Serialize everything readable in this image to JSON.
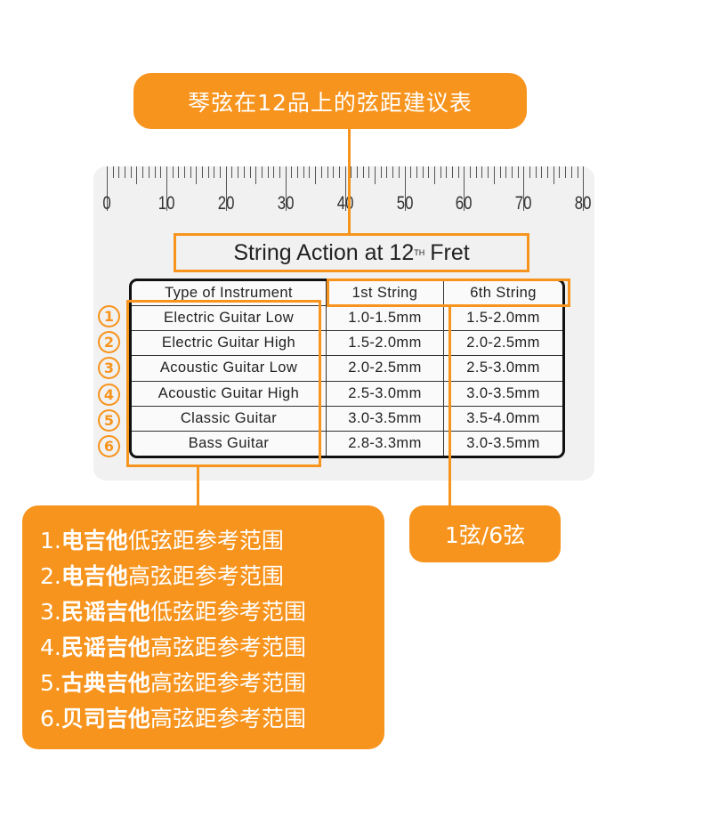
{
  "colors": {
    "accent": "#f7941d",
    "card": "#f1f1f1",
    "table_border": "#111111"
  },
  "title_callout": "琴弦在12品上的弦距建议表",
  "ruler": {
    "labels": [
      "0",
      "10",
      "20",
      "30",
      "40",
      "50",
      "60",
      "70",
      "80"
    ],
    "unit": "mm"
  },
  "card_title": {
    "main": "String Action at 12",
    "superscript": "TH",
    "suffix": "Fret"
  },
  "table": {
    "headers": [
      "Type of Instrument",
      "1st String",
      "6th String"
    ],
    "rows": [
      [
        "Electric Guitar Low",
        "1.0-1.5mm",
        "1.5-2.0mm"
      ],
      [
        "Electric Guitar High",
        "1.5-2.0mm",
        "2.0-2.5mm"
      ],
      [
        "Acoustic Guitar Low",
        "2.0-2.5mm",
        "2.5-3.0mm"
      ],
      [
        "Acoustic Guitar High",
        "2.5-3.0mm",
        "3.0-3.5mm"
      ],
      [
        "Classic Guitar",
        "3.0-3.5mm",
        "3.5-4.0mm"
      ],
      [
        "Bass Guitar",
        "2.8-3.3mm",
        "3.0-3.5mm"
      ]
    ]
  },
  "row_markers": [
    "1",
    "2",
    "3",
    "4",
    "5",
    "6"
  ],
  "legend": [
    {
      "num": "1.",
      "bold": "电吉他",
      "rest": "低弦距参考范围"
    },
    {
      "num": "2.",
      "bold": "电吉他",
      "rest": "高弦距参考范围"
    },
    {
      "num": "3.",
      "bold": "民谣吉他",
      "rest": "低弦距参考范围"
    },
    {
      "num": "4.",
      "bold": "民谣吉他",
      "rest": "高弦距参考范围"
    },
    {
      "num": "5.",
      "bold": "古典吉他",
      "rest": "高弦距参考范围"
    },
    {
      "num": "6.",
      "bold": "贝司吉他",
      "rest": "高弦距参考范围"
    }
  ],
  "string_callout": "1弦/6弦"
}
